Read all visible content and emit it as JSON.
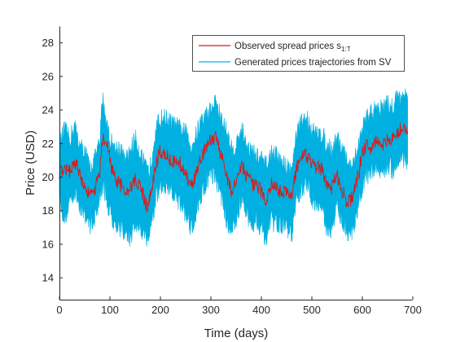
{
  "chart_data": {
    "type": "line",
    "title": "",
    "xlabel": "Time (days)",
    "ylabel": "Price (USD)",
    "xlim": [
      0,
      700
    ],
    "ylim": [
      12.7,
      29
    ],
    "xticks": [
      0,
      100,
      200,
      300,
      400,
      500,
      600,
      700
    ],
    "yticks": [
      14,
      16,
      18,
      20,
      22,
      24,
      26,
      28
    ],
    "grid": false,
    "legend_position": "top-right",
    "series": [
      {
        "name": "Generated prices trajectories from SV",
        "legend_main": "Generated prices trajectories from SV",
        "legend_sub": "",
        "color": "#00b0e0",
        "type": "band",
        "x": [
          0,
          10,
          20,
          30,
          40,
          50,
          60,
          70,
          80,
          85,
          90,
          100,
          110,
          120,
          130,
          140,
          150,
          160,
          170,
          175,
          180,
          190,
          200,
          210,
          220,
          230,
          240,
          250,
          260,
          270,
          280,
          290,
          300,
          310,
          320,
          330,
          340,
          350,
          360,
          370,
          380,
          390,
          400,
          410,
          420,
          430,
          440,
          450,
          460,
          470,
          480,
          490,
          500,
          510,
          520,
          530,
          540,
          550,
          560,
          570,
          580,
          590,
          600,
          610,
          620,
          630,
          640,
          650,
          660,
          670,
          680,
          690
        ],
        "upper": [
          21.8,
          22.8,
          22.2,
          23.0,
          21.8,
          21.5,
          20.5,
          21.0,
          22.0,
          24.8,
          23.8,
          22.2,
          21.6,
          21.8,
          20.8,
          21.5,
          22.3,
          21.4,
          20.5,
          20.2,
          20.6,
          22.8,
          23.4,
          23.5,
          23.2,
          23.0,
          22.8,
          22.6,
          21.8,
          22.4,
          23.3,
          23.6,
          24.0,
          24.5,
          23.4,
          22.8,
          21.6,
          21.8,
          22.9,
          22.0,
          21.5,
          21.2,
          21.0,
          20.6,
          21.4,
          21.2,
          20.8,
          20.6,
          20.4,
          22.6,
          23.2,
          23.5,
          22.8,
          22.4,
          22.6,
          21.8,
          21.6,
          22.4,
          21.6,
          20.8,
          20.3,
          21.6,
          22.8,
          23.6,
          23.8,
          24.2,
          24.0,
          24.3,
          24.1,
          24.8,
          24.9,
          24.4
        ],
        "lower": [
          18.8,
          17.5,
          18.6,
          19.2,
          18.4,
          17.9,
          17.2,
          17.6,
          18.8,
          19.5,
          19.2,
          17.8,
          17.4,
          17.0,
          16.8,
          16.4,
          17.2,
          17.0,
          16.6,
          16.3,
          17.0,
          18.6,
          19.4,
          19.4,
          19.2,
          18.8,
          18.4,
          17.9,
          17.0,
          17.8,
          19.0,
          19.6,
          20.4,
          19.9,
          19.0,
          17.6,
          16.8,
          17.4,
          18.8,
          17.8,
          17.2,
          17.6,
          17.0,
          16.3,
          17.4,
          17.2,
          17.3,
          17.0,
          16.6,
          18.6,
          19.4,
          19.6,
          18.8,
          18.4,
          18.2,
          17.0,
          17.0,
          18.4,
          17.4,
          16.8,
          16.9,
          18.0,
          19.4,
          20.2,
          20.4,
          20.6,
          20.3,
          20.8,
          20.4,
          21.0,
          21.2,
          20.8
        ]
      },
      {
        "name": "Observed spread prices s1:T",
        "legend_main": "Observed spread prices s",
        "legend_sub": "1:T",
        "color": "#e01818",
        "type": "line",
        "x": [
          0,
          10,
          20,
          30,
          40,
          50,
          60,
          70,
          80,
          85,
          90,
          100,
          110,
          120,
          130,
          140,
          150,
          160,
          170,
          175,
          180,
          190,
          200,
          210,
          220,
          230,
          240,
          250,
          260,
          270,
          280,
          290,
          300,
          310,
          320,
          330,
          340,
          350,
          360,
          370,
          380,
          390,
          400,
          410,
          420,
          430,
          440,
          450,
          460,
          470,
          480,
          490,
          500,
          510,
          520,
          530,
          540,
          550,
          560,
          570,
          580,
          590,
          600,
          610,
          620,
          630,
          640,
          650,
          660,
          670,
          680,
          690
        ],
        "values": [
          20.3,
          20.6,
          20.3,
          21.0,
          20.2,
          19.4,
          18.8,
          19.2,
          20.4,
          22.0,
          22.4,
          21.0,
          19.8,
          19.6,
          19.0,
          19.2,
          19.8,
          19.6,
          18.4,
          18.2,
          18.8,
          20.6,
          21.6,
          21.4,
          21.0,
          20.8,
          20.8,
          20.2,
          19.4,
          20.2,
          21.0,
          21.8,
          22.2,
          22.4,
          21.4,
          20.2,
          19.2,
          19.6,
          20.8,
          20.2,
          19.6,
          19.4,
          19.2,
          18.6,
          19.6,
          19.4,
          19.0,
          19.2,
          18.8,
          20.6,
          21.4,
          21.2,
          20.8,
          20.6,
          20.4,
          19.6,
          19.4,
          20.2,
          19.2,
          18.4,
          18.8,
          19.8,
          21.4,
          22.0,
          21.6,
          22.4,
          21.8,
          22.2,
          22.4,
          22.6,
          23.0,
          22.6
        ]
      }
    ]
  }
}
